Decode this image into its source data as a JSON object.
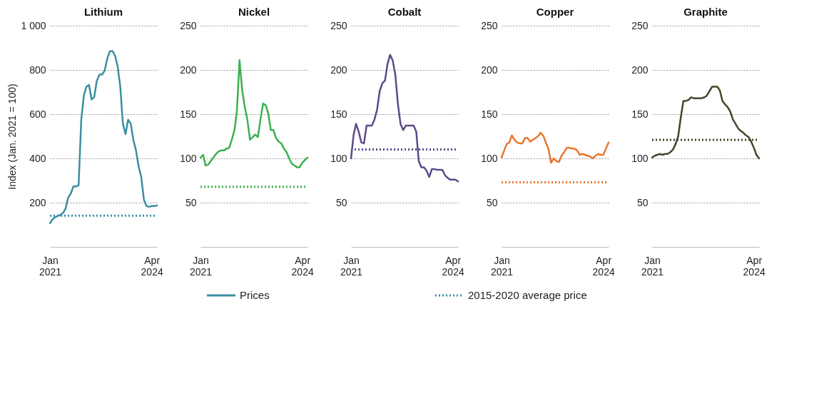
{
  "chart_data": [
    {
      "type": "line",
      "title": "Lithium",
      "ylabel": "Index (Jan. 2021 = 100)",
      "xlim": [
        "2021-01",
        "2024-06"
      ],
      "xticks": [
        {
          "value": "2021-01",
          "label": "Jan 2021"
        },
        {
          "value": "2024-04",
          "label": "Apr 2024"
        }
      ],
      "ylim": [
        0,
        1000
      ],
      "yticks": [
        200,
        400,
        600,
        800,
        {
          "value": 1000,
          "label": "1 000"
        }
      ],
      "grid": "y",
      "legend": "bottom",
      "line_style": "solid",
      "x": [
        "2021-01",
        "2021-02",
        "2021-03",
        "2021-04",
        "2021-05",
        "2021-06",
        "2021-07",
        "2021-08",
        "2021-09",
        "2021-10",
        "2021-11",
        "2021-12",
        "2022-01",
        "2022-02",
        "2022-03",
        "2022-04",
        "2022-05",
        "2022-06",
        "2022-07",
        "2022-08",
        "2022-09",
        "2022-10",
        "2022-11",
        "2022-12",
        "2023-01",
        "2023-02",
        "2023-03",
        "2023-04",
        "2023-05",
        "2023-06",
        "2023-07",
        "2023-08",
        "2023-09",
        "2023-10",
        "2023-11",
        "2023-12",
        "2024-01",
        "2024-02",
        "2024-03",
        "2024-04",
        "2024-05",
        "2024-06"
      ],
      "series": [
        {
          "name": "Prices",
          "color": "#3a8fa0",
          "values": [
            107,
            125,
            134,
            139,
            144,
            153,
            171,
            222,
            241,
            273,
            273,
            278,
            575,
            686,
            723,
            732,
            667,
            677,
            751,
            779,
            779,
            797,
            853,
            885,
            885,
            862,
            816,
            723,
            556,
            510,
            575,
            556,
            482,
            436,
            362,
            315,
            213,
            185,
            181,
            185,
            185,
            187
          ]
        }
      ],
      "ref_lines": [
        {
          "axis": "y",
          "value": 141,
          "label": "2015-2020 average price",
          "color": "#3a8fa0",
          "line_style": "dotted"
        }
      ]
    },
    {
      "type": "line",
      "title": "Nickel",
      "xlim": [
        "2021-01",
        "2024-06"
      ],
      "xticks": [
        {
          "value": "2021-01",
          "label": "Jan 2021"
        },
        {
          "value": "2024-04",
          "label": "Apr 2024"
        }
      ],
      "ylim": [
        0,
        250
      ],
      "yticks": [
        50,
        100,
        150,
        200,
        250
      ],
      "grid": "y",
      "line_style": "solid",
      "x": [
        "2021-01",
        "2021-02",
        "2021-03",
        "2021-04",
        "2021-05",
        "2021-06",
        "2021-07",
        "2021-08",
        "2021-09",
        "2021-10",
        "2021-11",
        "2021-12",
        "2022-01",
        "2022-02",
        "2022-03",
        "2022-04",
        "2022-05",
        "2022-06",
        "2022-07",
        "2022-08",
        "2022-09",
        "2022-10",
        "2022-11",
        "2022-12",
        "2023-01",
        "2023-02",
        "2023-03",
        "2023-04",
        "2023-05",
        "2023-06",
        "2023-07",
        "2023-08",
        "2023-09",
        "2023-10",
        "2023-11",
        "2023-12",
        "2024-01",
        "2024-02",
        "2024-03",
        "2024-04",
        "2024-05",
        "2024-06"
      ],
      "series": [
        {
          "color": "#3bb150",
          "values": [
            101,
            104,
            92,
            93,
            97,
            101,
            105,
            108,
            109,
            109,
            111,
            112,
            121,
            132,
            153,
            211,
            178,
            158,
            144,
            121,
            124,
            127,
            124,
            144,
            162,
            160,
            151,
            132,
            132,
            123,
            119,
            117,
            111,
            107,
            100,
            94,
            92,
            90,
            90,
            95,
            98,
            101
          ]
        }
      ],
      "ref_lines": [
        {
          "axis": "y",
          "value": 68,
          "color": "#3bb150",
          "line_style": "dotted"
        }
      ]
    },
    {
      "type": "line",
      "title": "Cobalt",
      "xlim": [
        "2021-01",
        "2024-06"
      ],
      "xticks": [
        {
          "value": "2021-01",
          "label": "Jan 2021"
        },
        {
          "value": "2024-04",
          "label": "Apr 2024"
        }
      ],
      "ylim": [
        0,
        250
      ],
      "yticks": [
        50,
        100,
        150,
        200,
        250
      ],
      "grid": "y",
      "line_style": "solid",
      "x": [
        "2021-01",
        "2021-02",
        "2021-03",
        "2021-04",
        "2021-05",
        "2021-06",
        "2021-07",
        "2021-08",
        "2021-09",
        "2021-10",
        "2021-11",
        "2021-12",
        "2022-01",
        "2022-02",
        "2022-03",
        "2022-04",
        "2022-05",
        "2022-06",
        "2022-07",
        "2022-08",
        "2022-09",
        "2022-10",
        "2022-11",
        "2022-12",
        "2023-01",
        "2023-02",
        "2023-03",
        "2023-04",
        "2023-05",
        "2023-06",
        "2023-07",
        "2023-08",
        "2023-09",
        "2023-10",
        "2023-11",
        "2023-12",
        "2024-01",
        "2024-02",
        "2024-03",
        "2024-04",
        "2024-05",
        "2024-06"
      ],
      "series": [
        {
          "color": "#5c4a8a",
          "values": [
            100,
            127,
            139,
            130,
            118,
            117,
            137,
            137,
            137,
            144,
            155,
            176,
            185,
            188,
            206,
            217,
            211,
            195,
            162,
            139,
            132,
            137,
            137,
            137,
            137,
            130,
            97,
            90,
            90,
            86,
            79,
            88,
            88,
            87,
            87,
            87,
            81,
            78,
            76,
            76,
            76,
            74
          ]
        }
      ],
      "ref_lines": [
        {
          "axis": "y",
          "value": 110,
          "color": "#5c4a8a",
          "line_style": "dotted"
        }
      ]
    },
    {
      "type": "line",
      "title": "Copper",
      "xlim": [
        "2021-01",
        "2024-06"
      ],
      "xticks": [
        {
          "value": "2021-01",
          "label": "Jan 2021"
        },
        {
          "value": "2024-04",
          "label": "Apr 2024"
        }
      ],
      "ylim": [
        0,
        250
      ],
      "yticks": [
        50,
        100,
        150,
        200,
        250
      ],
      "grid": "y",
      "line_style": "solid",
      "x": [
        "2021-01",
        "2021-02",
        "2021-03",
        "2021-04",
        "2021-05",
        "2021-06",
        "2021-07",
        "2021-08",
        "2021-09",
        "2021-10",
        "2021-11",
        "2021-12",
        "2022-01",
        "2022-02",
        "2022-03",
        "2022-04",
        "2022-05",
        "2022-06",
        "2022-07",
        "2022-08",
        "2022-09",
        "2022-10",
        "2022-11",
        "2022-12",
        "2023-01",
        "2023-02",
        "2023-03",
        "2023-04",
        "2023-05",
        "2023-06",
        "2023-07",
        "2023-08",
        "2023-09",
        "2023-10",
        "2023-11",
        "2023-12",
        "2024-01",
        "2024-02",
        "2024-03",
        "2024-04",
        "2024-05",
        "2024-06"
      ],
      "series": [
        {
          "color": "#e8772e",
          "values": [
            101,
            109,
            116,
            118,
            126,
            121,
            118,
            117,
            117,
            123,
            123,
            119,
            121,
            123,
            125,
            129,
            126,
            118,
            111,
            95,
            100,
            97,
            96,
            103,
            107,
            112,
            112,
            111,
            111,
            109,
            104,
            105,
            104,
            103,
            102,
            100,
            103,
            105,
            104,
            104,
            111,
            118
          ]
        }
      ],
      "ref_lines": [
        {
          "axis": "y",
          "value": 73,
          "color": "#e8772e",
          "line_style": "dotted"
        }
      ]
    },
    {
      "type": "line",
      "title": "Graphite",
      "xlim": [
        "2021-01",
        "2024-06"
      ],
      "xticks": [
        {
          "value": "2021-01",
          "label": "Jan 2021"
        },
        {
          "value": "2024-04",
          "label": "Apr 2024"
        }
      ],
      "ylim": [
        0,
        250
      ],
      "yticks": [
        50,
        100,
        150,
        200,
        250
      ],
      "grid": "y",
      "line_style": "solid",
      "x": [
        "2021-01",
        "2021-02",
        "2021-03",
        "2021-04",
        "2021-05",
        "2021-06",
        "2021-07",
        "2021-08",
        "2021-09",
        "2021-10",
        "2021-11",
        "2021-12",
        "2022-01",
        "2022-02",
        "2022-03",
        "2022-04",
        "2022-05",
        "2022-06",
        "2022-07",
        "2022-08",
        "2022-09",
        "2022-10",
        "2022-11",
        "2022-12",
        "2023-01",
        "2023-02",
        "2023-03",
        "2023-04",
        "2023-05",
        "2023-06",
        "2023-07",
        "2023-08",
        "2023-09",
        "2023-10",
        "2023-11",
        "2023-12",
        "2024-01",
        "2024-02",
        "2024-03",
        "2024-04",
        "2024-05",
        "2024-06"
      ],
      "series": [
        {
          "color": "#3e4a2a",
          "values": [
            101,
            103,
            104,
            105,
            104,
            105,
            105,
            107,
            110,
            116,
            125,
            146,
            165,
            165,
            166,
            169,
            168,
            168,
            168,
            168,
            169,
            171,
            176,
            181,
            181,
            181,
            177,
            165,
            161,
            158,
            153,
            144,
            139,
            134,
            131,
            129,
            126,
            124,
            119,
            112,
            104,
            100
          ]
        }
      ],
      "ref_lines": [
        {
          "axis": "y",
          "value": 121,
          "color": "#3e4a2a",
          "line_style": "dotted"
        }
      ]
    }
  ]
}
